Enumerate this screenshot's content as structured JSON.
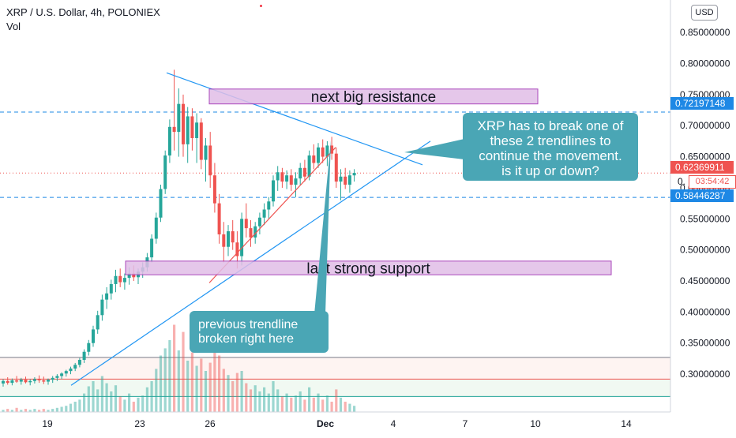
{
  "header": {
    "symbol_line": "XRP / U.S. Dollar, 4h, POLONIEX",
    "volume_label": "Vol"
  },
  "currency_button": "USD",
  "price_tags": {
    "resistance": "0.72197148",
    "last": "0.62369911",
    "support": "0.58446287",
    "countdown": "03:54:42",
    "partial_label": "0."
  },
  "annotations": {
    "resistance_box": "next big resistance",
    "support_box": "last strong support",
    "callout_right": [
      "XRP has to break one of",
      "these 2 trendlines to",
      "continue the movement.",
      "is it up or down?"
    ],
    "callout_bottom": [
      "previous trendline",
      "broken right here"
    ]
  },
  "colors": {
    "up": "#26a69a",
    "down": "#ef5350",
    "trendline": "#2196f3",
    "box_fill": "#e1bee7",
    "box_border": "#9c27b0",
    "callout": "#4aa6b5",
    "dashed_level": "#1e88e5",
    "last_price": "#ef5350"
  },
  "chart_data": {
    "type": "candlestick",
    "title": "XRP / U.S. Dollar, 4h, POLONIEX",
    "y_axis": {
      "ticks": [
        "0.85000000",
        "0.80000000",
        "0.75000000",
        "0.70000000",
        "0.65000000",
        "0.60000000",
        "0.55000000",
        "0.50000000",
        "0.45000000",
        "0.40000000",
        "0.35000000",
        "0.30000000"
      ],
      "range": [
        0.262,
        0.868
      ]
    },
    "x_axis": {
      "ticks": [
        "19",
        "23",
        "26",
        "Dec",
        "4",
        "7",
        "10",
        "14"
      ]
    },
    "horizontal_levels": [
      {
        "value": 0.72197148,
        "style": "dashed",
        "color": "#1e88e5"
      },
      {
        "value": 0.62369911,
        "style": "dotted",
        "color": "#ef5350"
      },
      {
        "value": 0.58446287,
        "style": "dashed",
        "color": "#1e88e5"
      }
    ],
    "zones": [
      {
        "label": "next big resistance",
        "from": 0.735,
        "to": 0.759
      },
      {
        "label": "last strong support",
        "from": 0.46,
        "to": 0.482
      }
    ],
    "candles": [
      [
        0.285,
        0.292,
        0.28,
        0.289
      ],
      [
        0.289,
        0.295,
        0.283,
        0.286
      ],
      [
        0.286,
        0.293,
        0.282,
        0.29
      ],
      [
        0.29,
        0.297,
        0.286,
        0.288
      ],
      [
        0.288,
        0.294,
        0.283,
        0.291
      ],
      [
        0.291,
        0.296,
        0.285,
        0.287
      ],
      [
        0.287,
        0.292,
        0.282,
        0.289
      ],
      [
        0.289,
        0.295,
        0.285,
        0.292
      ],
      [
        0.292,
        0.298,
        0.286,
        0.29
      ],
      [
        0.29,
        0.296,
        0.284,
        0.288
      ],
      [
        0.288,
        0.293,
        0.283,
        0.291
      ],
      [
        0.291,
        0.297,
        0.286,
        0.294
      ],
      [
        0.294,
        0.3,
        0.289,
        0.297
      ],
      [
        0.297,
        0.303,
        0.292,
        0.301
      ],
      [
        0.301,
        0.307,
        0.296,
        0.305
      ],
      [
        0.305,
        0.312,
        0.3,
        0.309
      ],
      [
        0.309,
        0.318,
        0.305,
        0.315
      ],
      [
        0.315,
        0.326,
        0.311,
        0.323
      ],
      [
        0.323,
        0.34,
        0.318,
        0.336
      ],
      [
        0.336,
        0.355,
        0.33,
        0.35
      ],
      [
        0.35,
        0.378,
        0.344,
        0.372
      ],
      [
        0.372,
        0.402,
        0.365,
        0.395
      ],
      [
        0.395,
        0.428,
        0.386,
        0.42
      ],
      [
        0.42,
        0.44,
        0.405,
        0.43
      ],
      [
        0.43,
        0.452,
        0.42,
        0.445
      ],
      [
        0.445,
        0.468,
        0.432,
        0.458
      ],
      [
        0.458,
        0.47,
        0.44,
        0.448
      ],
      [
        0.448,
        0.462,
        0.436,
        0.455
      ],
      [
        0.455,
        0.472,
        0.444,
        0.462
      ],
      [
        0.462,
        0.475,
        0.45,
        0.456
      ],
      [
        0.456,
        0.47,
        0.445,
        0.465
      ],
      [
        0.465,
        0.48,
        0.455,
        0.472
      ],
      [
        0.472,
        0.495,
        0.465,
        0.488
      ],
      [
        0.488,
        0.525,
        0.48,
        0.518
      ],
      [
        0.518,
        0.56,
        0.51,
        0.552
      ],
      [
        0.552,
        0.605,
        0.545,
        0.598
      ],
      [
        0.598,
        0.66,
        0.59,
        0.652
      ],
      [
        0.652,
        0.71,
        0.64,
        0.698
      ],
      [
        0.698,
        0.79,
        0.66,
        0.69
      ],
      [
        0.69,
        0.76,
        0.65,
        0.735
      ],
      [
        0.735,
        0.75,
        0.65,
        0.67
      ],
      [
        0.67,
        0.73,
        0.64,
        0.715
      ],
      [
        0.715,
        0.728,
        0.66,
        0.68
      ],
      [
        0.68,
        0.72,
        0.64,
        0.705
      ],
      [
        0.705,
        0.712,
        0.63,
        0.645
      ],
      [
        0.645,
        0.68,
        0.61,
        0.668
      ],
      [
        0.668,
        0.69,
        0.6,
        0.62
      ],
      [
        0.62,
        0.64,
        0.56,
        0.575
      ],
      [
        0.575,
        0.59,
        0.51,
        0.525
      ],
      [
        0.525,
        0.545,
        0.48,
        0.505
      ],
      [
        0.505,
        0.54,
        0.49,
        0.53
      ],
      [
        0.53,
        0.548,
        0.5,
        0.512
      ],
      [
        0.512,
        0.53,
        0.47,
        0.49
      ],
      [
        0.49,
        0.56,
        0.475,
        0.55
      ],
      [
        0.55,
        0.575,
        0.52,
        0.535
      ],
      [
        0.535,
        0.548,
        0.505,
        0.52
      ],
      [
        0.52,
        0.545,
        0.51,
        0.538
      ],
      [
        0.538,
        0.56,
        0.525,
        0.552
      ],
      [
        0.552,
        0.575,
        0.54,
        0.565
      ],
      [
        0.565,
        0.585,
        0.55,
        0.578
      ],
      [
        0.578,
        0.62,
        0.57,
        0.612
      ],
      [
        0.612,
        0.635,
        0.595,
        0.625
      ],
      [
        0.625,
        0.632,
        0.6,
        0.61
      ],
      [
        0.61,
        0.628,
        0.598,
        0.62
      ],
      [
        0.62,
        0.63,
        0.595,
        0.605
      ],
      [
        0.605,
        0.625,
        0.585,
        0.615
      ],
      [
        0.615,
        0.64,
        0.605,
        0.632
      ],
      [
        0.632,
        0.645,
        0.61,
        0.618
      ],
      [
        0.618,
        0.66,
        0.612,
        0.652
      ],
      [
        0.652,
        0.67,
        0.63,
        0.64
      ],
      [
        0.64,
        0.672,
        0.632,
        0.665
      ],
      [
        0.665,
        0.678,
        0.64,
        0.65
      ],
      [
        0.65,
        0.675,
        0.635,
        0.668
      ],
      [
        0.668,
        0.682,
        0.645,
        0.655
      ],
      [
        0.655,
        0.665,
        0.6,
        0.61
      ],
      [
        0.61,
        0.63,
        0.58,
        0.618
      ],
      [
        0.618,
        0.632,
        0.598,
        0.605
      ],
      [
        0.605,
        0.628,
        0.592,
        0.62
      ],
      [
        0.62,
        0.63,
        0.61,
        0.624
      ]
    ],
    "volume": [
      [
        0.02,
        "up"
      ],
      [
        0.03,
        "down"
      ],
      [
        0.02,
        "up"
      ],
      [
        0.04,
        "down"
      ],
      [
        0.02,
        "up"
      ],
      [
        0.03,
        "down"
      ],
      [
        0.02,
        "up"
      ],
      [
        0.03,
        "up"
      ],
      [
        0.02,
        "down"
      ],
      [
        0.03,
        "down"
      ],
      [
        0.02,
        "up"
      ],
      [
        0.03,
        "up"
      ],
      [
        0.04,
        "up"
      ],
      [
        0.05,
        "up"
      ],
      [
        0.06,
        "up"
      ],
      [
        0.08,
        "up"
      ],
      [
        0.1,
        "up"
      ],
      [
        0.12,
        "up"
      ],
      [
        0.18,
        "up"
      ],
      [
        0.25,
        "up"
      ],
      [
        0.3,
        "up"
      ],
      [
        0.22,
        "up"
      ],
      [
        0.35,
        "up"
      ],
      [
        0.28,
        "up"
      ],
      [
        0.2,
        "up"
      ],
      [
        0.26,
        "up"
      ],
      [
        0.15,
        "down"
      ],
      [
        0.12,
        "up"
      ],
      [
        0.18,
        "up"
      ],
      [
        0.1,
        "down"
      ],
      [
        0.14,
        "up"
      ],
      [
        0.16,
        "up"
      ],
      [
        0.24,
        "up"
      ],
      [
        0.3,
        "up"
      ],
      [
        0.42,
        "up"
      ],
      [
        0.55,
        "up"
      ],
      [
        0.62,
        "up"
      ],
      [
        0.7,
        "up"
      ],
      [
        0.85,
        "down"
      ],
      [
        0.6,
        "up"
      ],
      [
        0.78,
        "down"
      ],
      [
        0.5,
        "up"
      ],
      [
        0.58,
        "down"
      ],
      [
        0.45,
        "up"
      ],
      [
        0.52,
        "down"
      ],
      [
        0.4,
        "up"
      ],
      [
        0.48,
        "down"
      ],
      [
        0.62,
        "down"
      ],
      [
        0.55,
        "down"
      ],
      [
        0.42,
        "down"
      ],
      [
        0.36,
        "up"
      ],
      [
        0.3,
        "down"
      ],
      [
        0.38,
        "down"
      ],
      [
        0.4,
        "up"
      ],
      [
        0.28,
        "down"
      ],
      [
        0.22,
        "down"
      ],
      [
        0.26,
        "up"
      ],
      [
        0.2,
        "up"
      ],
      [
        0.24,
        "up"
      ],
      [
        0.18,
        "up"
      ],
      [
        0.3,
        "up"
      ],
      [
        0.22,
        "up"
      ],
      [
        0.15,
        "down"
      ],
      [
        0.18,
        "up"
      ],
      [
        0.14,
        "down"
      ],
      [
        0.16,
        "up"
      ],
      [
        0.2,
        "up"
      ],
      [
        0.12,
        "down"
      ],
      [
        0.24,
        "up"
      ],
      [
        0.14,
        "down"
      ],
      [
        0.18,
        "up"
      ],
      [
        0.12,
        "down"
      ],
      [
        0.16,
        "up"
      ],
      [
        0.1,
        "down"
      ],
      [
        0.22,
        "down"
      ],
      [
        0.14,
        "up"
      ],
      [
        0.1,
        "down"
      ],
      [
        0.08,
        "up"
      ],
      [
        0.06,
        "up"
      ]
    ]
  }
}
